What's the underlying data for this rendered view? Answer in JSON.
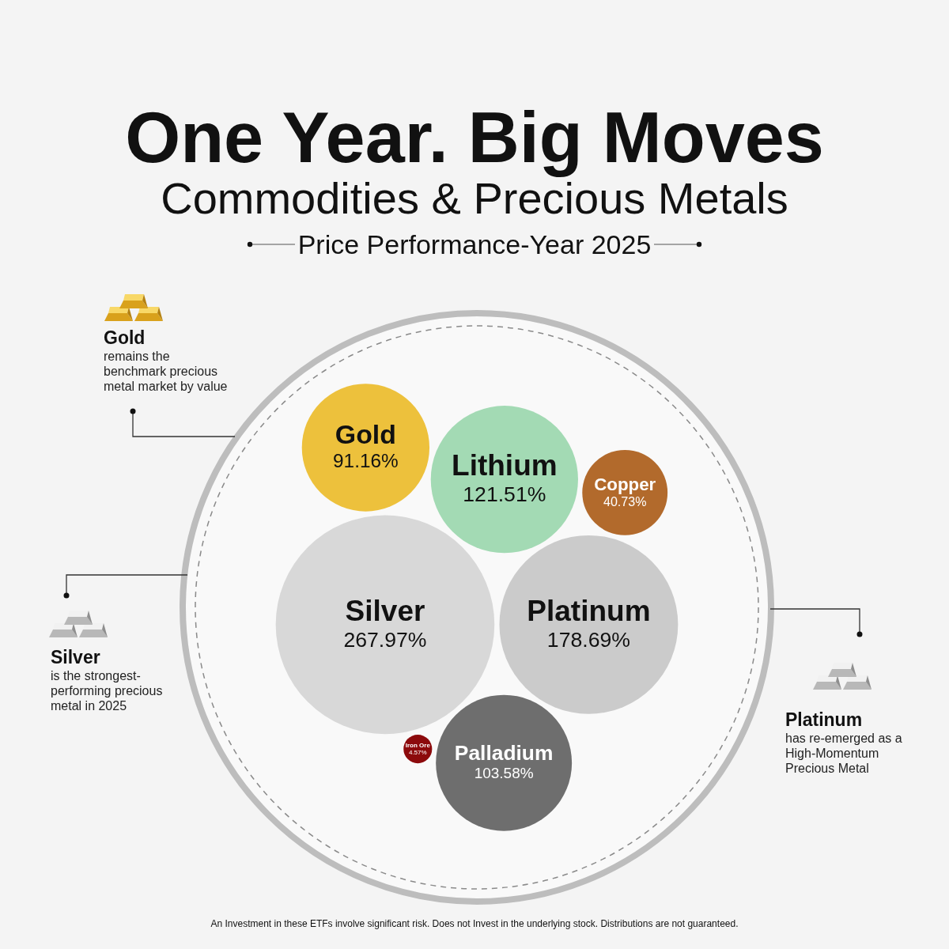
{
  "chart_data": {
    "type": "other",
    "title": "One Year. Big Moves",
    "subtitle": "Commodities & Precious Metals",
    "categories": [
      "Gold",
      "Palladium",
      "Iron Ore",
      "Silver",
      "Platinum",
      "Copper",
      "Lithium"
    ],
    "values": [
      91.16,
      103.58,
      4.57,
      267.97,
      178.69,
      40.73,
      121.51
    ],
    "value_labels": [
      "91.16%",
      "103.58%",
      "4.57%",
      "267.97%",
      "178.69%",
      "40.73%",
      "121.51%"
    ],
    "colors": [
      "#edc13c",
      "#6e6e6e",
      "#8c0a0c",
      "#d8d8d8",
      "#cbcbcb",
      "#b26a2c",
      "#a3dab4"
    ],
    "annotations": [
      "Price Performance-Year 2025",
      "Gold\nremains the benchmark precious metal market by value",
      "Silver\nis the strongest-performing precious metal in 2025",
      "Platinum\nhas re-emerged as a High-Momentum Precious Metal",
      "An Investment in these ETFs involve significant risk. Does not Invest in the underlying stock. Distributions are not guaranteed."
    ]
  }
}
